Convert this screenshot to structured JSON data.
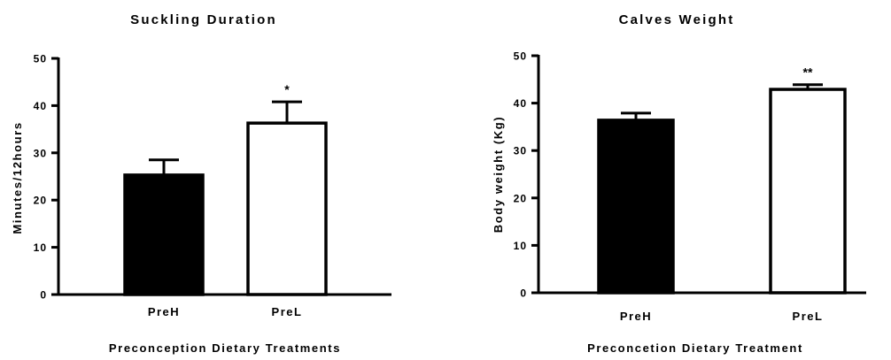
{
  "chart_data": [
    {
      "type": "bar",
      "title": "Suckling Duration",
      "xlabel": "Preconception Dietary Treatments",
      "ylabel": "Minutes/12hours",
      "ylim": [
        0,
        50
      ],
      "yticks": [
        0,
        10,
        20,
        30,
        40,
        50
      ],
      "categories": [
        "PreH",
        "PreL"
      ],
      "values": [
        25.3,
        36.3
      ],
      "errors": [
        3.2,
        4.5
      ],
      "fills": [
        "#000000",
        "#ffffff"
      ],
      "annotations": [
        "",
        "*"
      ],
      "grid": false
    },
    {
      "type": "bar",
      "title": "Calves Weight",
      "xlabel": "Preconcetion Dietary Treatment",
      "ylabel": "Body weight (Kg)",
      "ylim": [
        0,
        50
      ],
      "yticks": [
        0,
        10,
        20,
        30,
        40,
        50
      ],
      "categories": [
        "PreH",
        "PreL"
      ],
      "values": [
        36.4,
        42.9
      ],
      "errors": [
        1.5,
        1.0
      ],
      "fills": [
        "#000000",
        "#ffffff"
      ],
      "annotations": [
        "",
        "**"
      ],
      "grid": false
    }
  ]
}
